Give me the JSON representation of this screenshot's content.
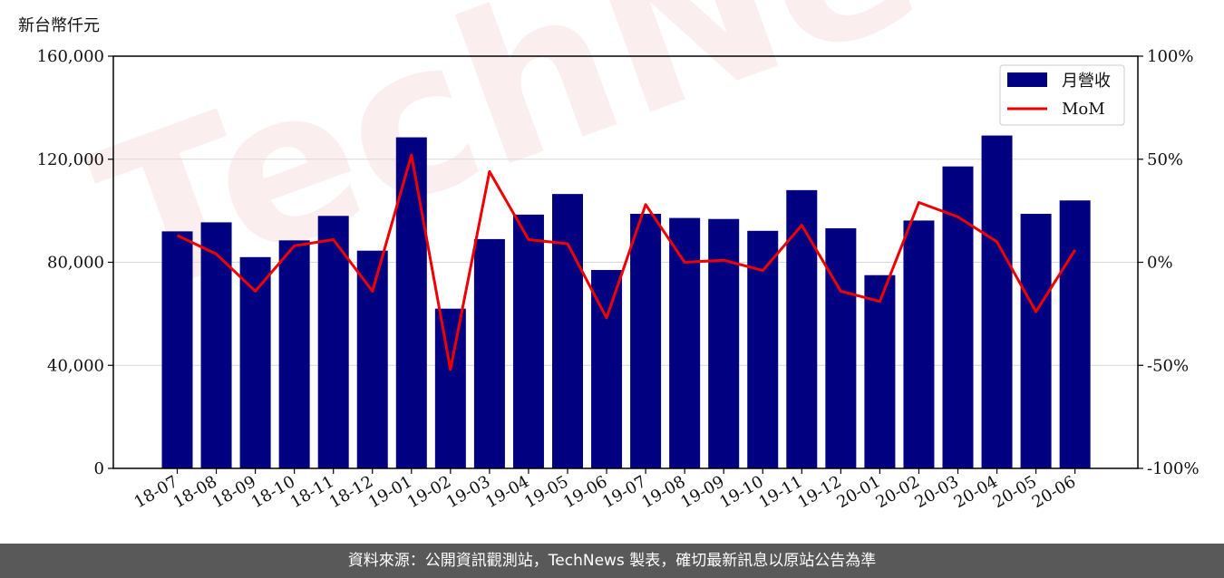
{
  "watermark": "TechNews",
  "unit_label": "新台幣仟元",
  "footer": "資料來源：公開資訊觀測站，TechNews 製表，確切最新訊息以原站公告為準",
  "colors": {
    "bar": "#000080",
    "line": "#ee0000",
    "grid": "#d9d9d9",
    "footer_bg": "#595959"
  },
  "chart_data": {
    "type": "bar+line",
    "categories": [
      "18-07",
      "18-08",
      "18-09",
      "18-10",
      "18-11",
      "18-12",
      "19-01",
      "19-02",
      "19-03",
      "19-04",
      "19-05",
      "19-06",
      "19-07",
      "19-08",
      "19-09",
      "19-10",
      "19-11",
      "19-12",
      "20-01",
      "20-02",
      "20-03",
      "20-04",
      "20-05",
      "20-06"
    ],
    "series": [
      {
        "name": "月營收",
        "type": "bar",
        "axis": "left",
        "values": [
          92000,
          95500,
          82000,
          88500,
          98000,
          84500,
          128500,
          62000,
          89000,
          98500,
          106500,
          77000,
          98800,
          97200,
          96800,
          92200,
          108000,
          93200,
          75000,
          96200,
          117200,
          129200,
          98800,
          104000
        ]
      },
      {
        "name": "MoM",
        "type": "line",
        "axis": "right",
        "values": [
          13,
          4,
          -14,
          8,
          11,
          -14,
          52,
          -52,
          44,
          11,
          9,
          -27,
          28,
          0,
          1,
          -4,
          18,
          -14,
          -19,
          29,
          22,
          10,
          -24,
          6
        ]
      }
    ],
    "ylim_left": [
      0,
      160000
    ],
    "yticks_left": [
      0,
      40000,
      80000,
      120000,
      160000
    ],
    "yticklabels_left": [
      "0",
      "40,000",
      "80,000",
      "120,000",
      "160,000"
    ],
    "ylim_right": [
      -100,
      100
    ],
    "yticks_right": [
      -100,
      -50,
      0,
      50,
      100
    ],
    "yticklabels_right": [
      "-100%",
      "-50%",
      "0%",
      "50%",
      "100%"
    ],
    "grid": true,
    "legend": "top-right"
  }
}
